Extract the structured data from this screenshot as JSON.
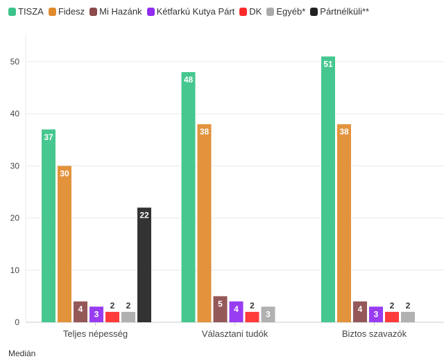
{
  "chart_data": {
    "type": "bar",
    "title": "",
    "xlabel": "",
    "ylabel": "",
    "ylim": [
      0,
      55
    ],
    "yticks": [
      0,
      10,
      20,
      30,
      40,
      50
    ],
    "grid": true,
    "legend_position": "top-left",
    "categories": [
      "Teljes népesség",
      "Választani tudók",
      "Biztos szavazók"
    ],
    "series": [
      {
        "name": "TISZA",
        "color": "#3cc48a",
        "values": [
          37,
          48,
          51
        ]
      },
      {
        "name": "Fidesz",
        "color": "#df8a2b",
        "values": [
          30,
          38,
          38
        ]
      },
      {
        "name": "Mi Hazánk",
        "color": "#8c4a4a",
        "values": [
          4,
          5,
          4
        ]
      },
      {
        "name": "Kétfarkú Kutya Párt",
        "color": "#8f2cf0",
        "values": [
          3,
          4,
          3
        ]
      },
      {
        "name": "DK",
        "color": "#ff2a2a",
        "values": [
          2,
          2,
          2
        ]
      },
      {
        "name": "Egyéb*",
        "color": "#aaaaaa",
        "values": [
          2,
          3,
          2
        ]
      },
      {
        "name": "Pártnélküli**",
        "color": "#222222",
        "values": [
          22,
          null,
          null
        ]
      }
    ]
  },
  "footer": "Medián"
}
